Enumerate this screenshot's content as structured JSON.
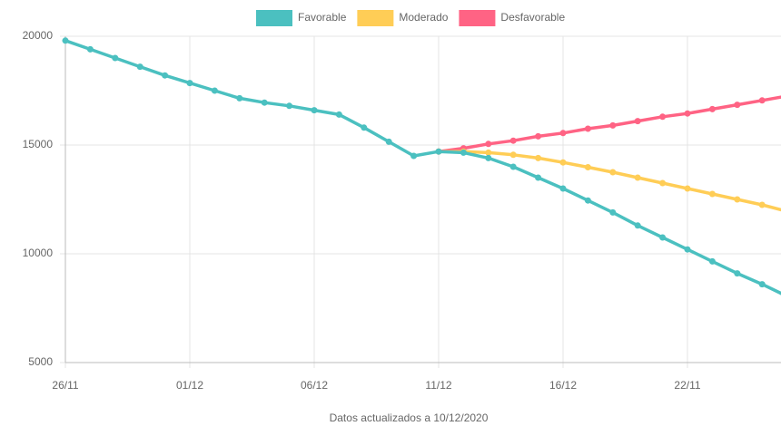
{
  "chart_data": {
    "type": "line",
    "x_label": "Datos actualizados a 10/12/2020",
    "categories": [
      "26/11",
      null,
      null,
      null,
      null,
      "01/12",
      null,
      null,
      null,
      null,
      "06/12",
      null,
      null,
      null,
      null,
      "11/12",
      null,
      null,
      null,
      null,
      "16/12",
      null,
      null,
      null,
      null,
      "22/11",
      null,
      null,
      null,
      null
    ],
    "series": [
      {
        "name": "Favorable",
        "color": "#4bc0c0",
        "values": [
          19800,
          19400,
          19000,
          18600,
          18200,
          17850,
          17500,
          17150,
          16950,
          16800,
          16600,
          16400,
          15800,
          15150,
          14500,
          14700,
          14650,
          14400,
          14000,
          13500,
          13000,
          12450,
          11900,
          11300,
          10750,
          10200,
          9650,
          9100,
          8600,
          8050
        ]
      },
      {
        "name": "Moderado",
        "color": "#ffcd56",
        "values": [
          null,
          null,
          null,
          null,
          null,
          null,
          null,
          null,
          null,
          null,
          null,
          null,
          null,
          null,
          null,
          14700,
          14700,
          14650,
          14550,
          14400,
          14200,
          13980,
          13750,
          13500,
          13250,
          13000,
          12750,
          12500,
          12250,
          11950
        ]
      },
      {
        "name": "Desfavorable",
        "color": "#ff6384",
        "values": [
          null,
          null,
          null,
          null,
          null,
          null,
          null,
          null,
          null,
          null,
          null,
          null,
          null,
          null,
          null,
          14700,
          14850,
          15050,
          15200,
          15400,
          15550,
          15750,
          15900,
          16100,
          16300,
          16450,
          16650,
          16850,
          17050,
          17250
        ]
      }
    ],
    "ylim": [
      5000,
      20000
    ],
    "yticks": [
      5000,
      10000,
      15000,
      20000
    ],
    "grid": true,
    "legend": "top"
  }
}
